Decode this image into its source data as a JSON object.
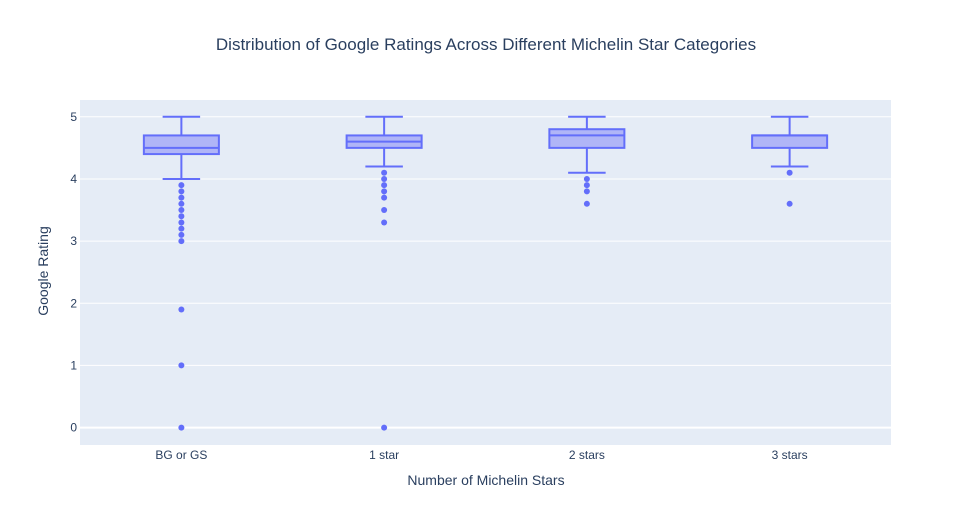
{
  "chart_data": {
    "type": "box",
    "title": "Distribution of Google Ratings Across Different Michelin Star Categories",
    "xlabel": "Number of Michelin Stars",
    "ylabel": "Google Rating",
    "categories": [
      "BG or GS",
      "1 star",
      "2 stars",
      "3 stars"
    ],
    "y_ticks": [
      0,
      1,
      2,
      3,
      4,
      5
    ],
    "ylim": [
      -0.28,
      5.27
    ],
    "grid": true,
    "legend": "none",
    "boxes": [
      {
        "category": "BG or GS",
        "lower_whisker": 4.0,
        "q1": 4.4,
        "median": 4.5,
        "q3": 4.7,
        "upper_whisker": 5.0,
        "outliers": [
          3.9,
          3.8,
          3.7,
          3.6,
          3.5,
          3.4,
          3.3,
          3.2,
          3.1,
          3.0,
          1.9,
          1.0,
          0.0
        ]
      },
      {
        "category": "1 star",
        "lower_whisker": 4.2,
        "q1": 4.5,
        "median": 4.6,
        "q3": 4.7,
        "upper_whisker": 5.0,
        "outliers": [
          4.1,
          4.0,
          3.9,
          3.8,
          3.7,
          3.5,
          3.3,
          0.0
        ]
      },
      {
        "category": "2 stars",
        "lower_whisker": 4.1,
        "q1": 4.5,
        "median": 4.7,
        "q3": 4.8,
        "upper_whisker": 5.0,
        "outliers": [
          4.0,
          3.9,
          3.8,
          3.6
        ]
      },
      {
        "category": "3 stars",
        "lower_whisker": 4.2,
        "q1": 4.5,
        "median": 4.7,
        "q3": 4.7,
        "upper_whisker": 5.0,
        "outliers": [
          4.1,
          3.6
        ]
      }
    ],
    "colors": {
      "box_line": "#636efa",
      "box_fill": "#b0b5f7",
      "plot_bg": "#e5ecf6",
      "grid": "#ffffff",
      "text": "#2a3f5f"
    }
  }
}
